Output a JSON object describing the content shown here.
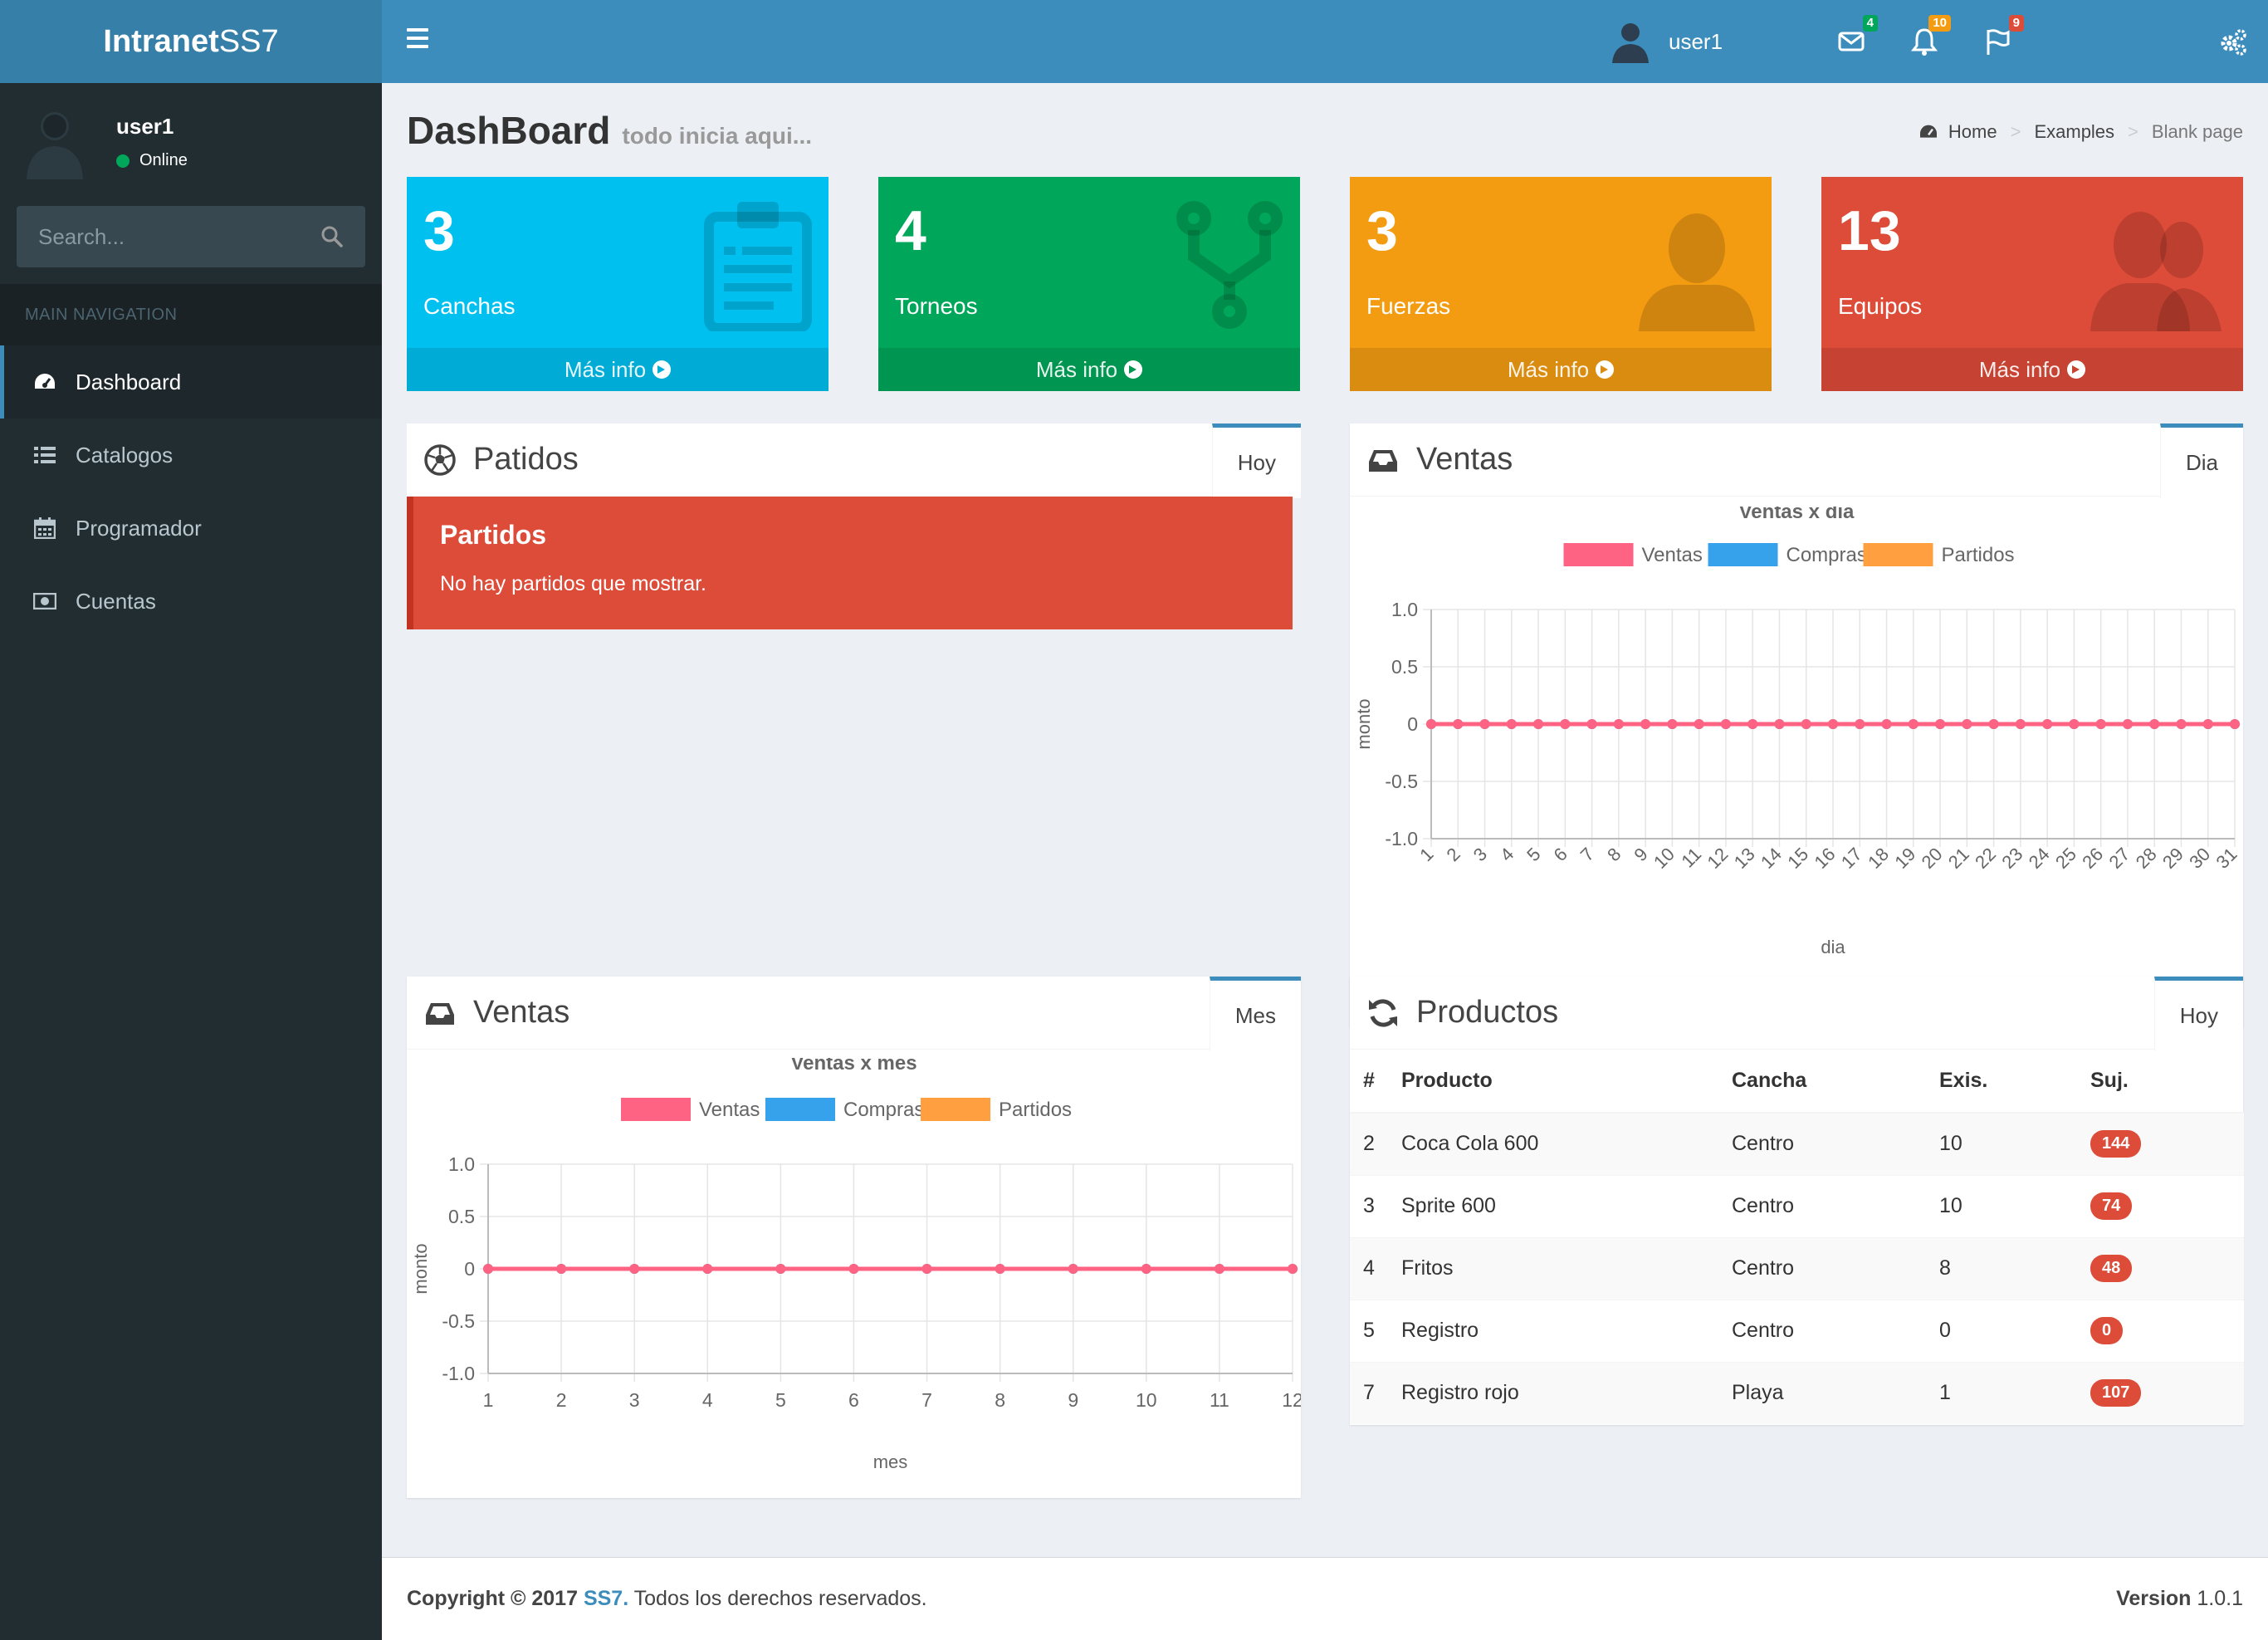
{
  "app": {
    "logo_bold": "Intranet",
    "logo_light": "SS7"
  },
  "sidebar": {
    "user_name": "user1",
    "user_status": "Online",
    "search_placeholder": "Search...",
    "nav_header": "MAIN NAVIGATION",
    "items": [
      {
        "label": "Dashboard",
        "icon": "dashboard-icon",
        "active": true
      },
      {
        "label": "Catalogos",
        "icon": "list-icon"
      },
      {
        "label": "Programador",
        "icon": "calendar-icon"
      },
      {
        "label": "Cuentas",
        "icon": "money-icon"
      }
    ]
  },
  "header": {
    "messages_count": "4",
    "notifications_count": "10",
    "tasks_count": "9",
    "user_name": "user1",
    "badge_colors": {
      "messages": "#00a65a",
      "notifications": "#f39c12",
      "tasks": "#dd4b39"
    }
  },
  "page": {
    "title": "DashBoard",
    "subtitle": "todo inicia aqui...",
    "breadcrumb": [
      "Home",
      "Examples",
      "Blank page"
    ]
  },
  "boxes": [
    {
      "number": "3",
      "label": "Canchas",
      "footer": "Más info",
      "color": "#00c0ef",
      "icon": "clipboard-icon"
    },
    {
      "number": "4",
      "label": "Torneos",
      "footer": "Más info",
      "color": "#00a65a",
      "icon": "code-fork-icon"
    },
    {
      "number": "3",
      "label": "Fuerzas",
      "footer": "Más info",
      "color": "#f39c12",
      "icon": "user-icon"
    },
    {
      "number": "13",
      "label": "Equipos",
      "footer": "Más info",
      "color": "#dd4b39",
      "icon": "users-icon"
    }
  ],
  "patidos": {
    "title": "Patidos",
    "tab": "Hoy",
    "alert_title": "Partidos",
    "alert_text": "No hay partidos que mostrar."
  },
  "ventas_dia": {
    "title": "Ventas",
    "tab": "Dia"
  },
  "ventas_mes": {
    "title": "Ventas",
    "tab": "Mes"
  },
  "productos": {
    "title": "Productos",
    "tab": "Hoy",
    "columns": [
      "#",
      "Producto",
      "Cancha",
      "Exis.",
      "Suj."
    ],
    "rows": [
      [
        "2",
        "Coca Cola 600",
        "Centro",
        "10",
        "144"
      ],
      [
        "3",
        "Sprite 600",
        "Centro",
        "10",
        "74"
      ],
      [
        "4",
        "Fritos",
        "Centro",
        "8",
        "48"
      ],
      [
        "5",
        "Registro",
        "Centro",
        "0",
        "0"
      ],
      [
        "7",
        "Registro rojo",
        "Playa",
        "1",
        "107"
      ]
    ]
  },
  "footer": {
    "copyright": "Copyright © 2017",
    "brand": "SS7.",
    "rights": "Todos los derechos reservados.",
    "version_label": "Version",
    "version": "1.0.1"
  },
  "chart_data": [
    {
      "type": "line",
      "title": "Ventas x día",
      "xlabel": "dia",
      "ylabel": "monto",
      "ylim": [
        -1.0,
        1.0
      ],
      "yticks": [
        "1.0",
        "0.5",
        "0",
        "-0.5",
        "-1.0"
      ],
      "legend_position": "top",
      "categories": [
        "1",
        "2",
        "3",
        "4",
        "5",
        "6",
        "7",
        "8",
        "9",
        "10",
        "11",
        "12",
        "13",
        "14",
        "15",
        "16",
        "17",
        "18",
        "19",
        "20",
        "21",
        "22",
        "23",
        "24",
        "25",
        "26",
        "27",
        "28",
        "29",
        "30",
        "31"
      ],
      "series": [
        {
          "name": "Ventas",
          "color": "#ff6384",
          "values": [
            0,
            0,
            0,
            0,
            0,
            0,
            0,
            0,
            0,
            0,
            0,
            0,
            0,
            0,
            0,
            0,
            0,
            0,
            0,
            0,
            0,
            0,
            0,
            0,
            0,
            0,
            0,
            0,
            0,
            0,
            0
          ]
        },
        {
          "name": "Compras",
          "color": "#36a2eb",
          "values": [
            0,
            0,
            0,
            0,
            0,
            0,
            0,
            0,
            0,
            0,
            0,
            0,
            0,
            0,
            0,
            0,
            0,
            0,
            0,
            0,
            0,
            0,
            0,
            0,
            0,
            0,
            0,
            0,
            0,
            0,
            0
          ]
        },
        {
          "name": "Partidos",
          "color": "#ff9f40",
          "values": [
            0,
            0,
            0,
            0,
            0,
            0,
            0,
            0,
            0,
            0,
            0,
            0,
            0,
            0,
            0,
            0,
            0,
            0,
            0,
            0,
            0,
            0,
            0,
            0,
            0,
            0,
            0,
            0,
            0,
            0,
            0
          ]
        }
      ]
    },
    {
      "type": "line",
      "title": "Ventas x mes",
      "xlabel": "mes",
      "ylabel": "monto",
      "ylim": [
        -1.0,
        1.0
      ],
      "yticks": [
        "1.0",
        "0.5",
        "0",
        "-0.5",
        "-1.0"
      ],
      "legend_position": "top",
      "categories": [
        "1",
        "2",
        "3",
        "4",
        "5",
        "6",
        "7",
        "8",
        "9",
        "10",
        "11",
        "12"
      ],
      "series": [
        {
          "name": "Ventas",
          "color": "#ff6384",
          "values": [
            0,
            0,
            0,
            0,
            0,
            0,
            0,
            0,
            0,
            0,
            0,
            0
          ]
        },
        {
          "name": "Compras",
          "color": "#36a2eb",
          "values": [
            0,
            0,
            0,
            0,
            0,
            0,
            0,
            0,
            0,
            0,
            0,
            0
          ]
        },
        {
          "name": "Partidos",
          "color": "#ff9f40",
          "values": [
            0,
            0,
            0,
            0,
            0,
            0,
            0,
            0,
            0,
            0,
            0,
            0
          ]
        }
      ]
    }
  ]
}
